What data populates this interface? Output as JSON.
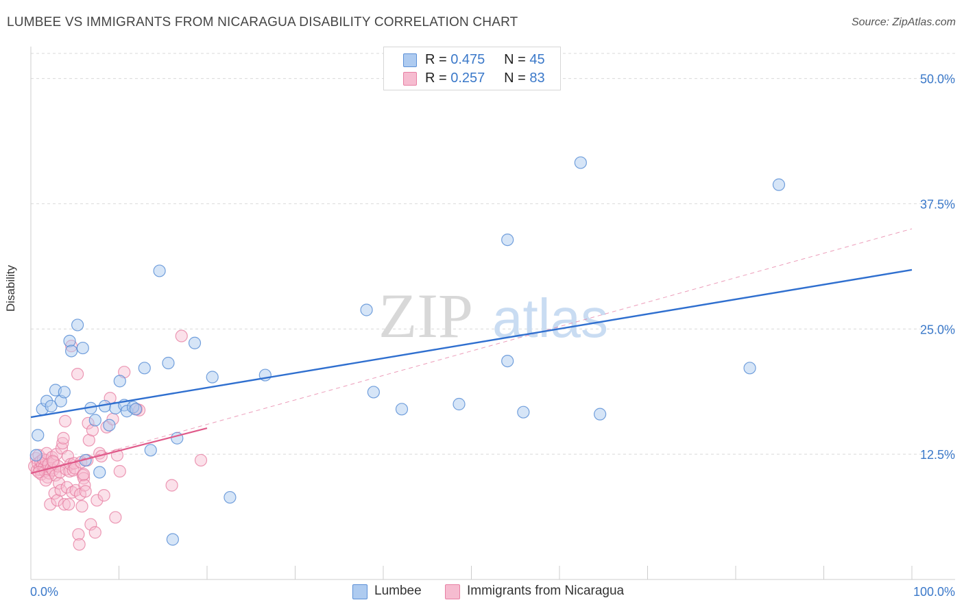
{
  "header": {
    "title": "LUMBEE VS IMMIGRANTS FROM NICARAGUA DISABILITY CORRELATION CHART",
    "source": "Source: ZipAtlas.com"
  },
  "legend_top": {
    "rows": [
      {
        "r_label": "R =",
        "r_value": "0.475",
        "n_label": "N =",
        "n_value": "45"
      },
      {
        "r_label": "R =",
        "r_value": "0.257",
        "n_label": "N =",
        "n_value": "83"
      }
    ]
  },
  "watermark": {
    "zip": "ZIP",
    "atlas": "atlas"
  },
  "colors": {
    "lumbee_fill": "#aecbf0",
    "lumbee_stroke": "#5b8fd6",
    "lumbee_line": "#2f6fcf",
    "nic_fill": "#f6bcd0",
    "nic_stroke": "#e77fa3",
    "nic_line": "#e05a8a",
    "tick_label": "#3a78c9",
    "grid": "#d9d9d9"
  },
  "chart_data": {
    "type": "scatter",
    "title": "LUMBEE VS IMMIGRANTS FROM NICARAGUA DISABILITY CORRELATION CHART",
    "xlabel": "",
    "ylabel": "Disability",
    "xlim": [
      0,
      100
    ],
    "ylim": [
      0,
      52.5
    ],
    "x_tick_labels": [
      "0.0%",
      "100.0%"
    ],
    "y_ticks": [
      12.5,
      25.0,
      37.5,
      50.0
    ],
    "y_tick_labels": [
      "12.5%",
      "25.0%",
      "37.5%",
      "50.0%"
    ],
    "grid": "horizontal dashed",
    "series": [
      {
        "name": "Lumbee",
        "r": 0.475,
        "n": 45,
        "trend": {
          "x": [
            0,
            100
          ],
          "y": [
            16.2,
            30.9
          ],
          "style": "solid"
        },
        "points": [
          [
            0.8,
            14.4
          ],
          [
            1.3,
            17.0
          ],
          [
            1.8,
            17.8
          ],
          [
            2.3,
            17.3
          ],
          [
            2.8,
            18.9
          ],
          [
            3.4,
            17.8
          ],
          [
            3.8,
            18.7
          ],
          [
            4.4,
            23.8
          ],
          [
            4.6,
            22.8
          ],
          [
            5.3,
            25.4
          ],
          [
            5.9,
            23.1
          ],
          [
            6.2,
            11.9
          ],
          [
            6.8,
            17.1
          ],
          [
            7.3,
            15.9
          ],
          [
            7.8,
            10.7
          ],
          [
            8.4,
            17.3
          ],
          [
            8.9,
            15.4
          ],
          [
            9.6,
            17.1
          ],
          [
            10.1,
            19.8
          ],
          [
            10.6,
            17.4
          ],
          [
            10.9,
            16.8
          ],
          [
            11.6,
            17.2
          ],
          [
            11.9,
            17.0
          ],
          [
            12.9,
            21.1
          ],
          [
            13.6,
            12.9
          ],
          [
            14.6,
            30.8
          ],
          [
            15.6,
            21.6
          ],
          [
            16.1,
            4.0
          ],
          [
            16.6,
            14.1
          ],
          [
            18.6,
            23.6
          ],
          [
            20.6,
            20.2
          ],
          [
            22.6,
            8.2
          ],
          [
            26.6,
            20.4
          ],
          [
            38.1,
            26.9
          ],
          [
            38.9,
            18.7
          ],
          [
            42.1,
            17.0
          ],
          [
            48.6,
            17.5
          ],
          [
            54.1,
            33.9
          ],
          [
            54.1,
            21.8
          ],
          [
            55.9,
            16.7
          ],
          [
            62.4,
            41.6
          ],
          [
            64.6,
            16.5
          ],
          [
            81.6,
            21.1
          ],
          [
            84.9,
            39.4
          ],
          [
            0.6,
            12.4
          ]
        ]
      },
      {
        "name": "Immigrants from Nicaragua",
        "r": 0.257,
        "n": 83,
        "trend": {
          "x": [
            0,
            20
          ],
          "y": [
            10.6,
            15.1
          ],
          "style": "solid"
        },
        "trend_extended": {
          "x": [
            0,
            100
          ],
          "y": [
            10.6,
            35.0
          ],
          "style": "dashed"
        },
        "points": [
          [
            0.4,
            11.3
          ],
          [
            0.6,
            12.1
          ],
          [
            0.7,
            10.9
          ],
          [
            0.8,
            11.6
          ],
          [
            0.9,
            12.4
          ],
          [
            1.0,
            11.0
          ],
          [
            1.1,
            11.8
          ],
          [
            1.2,
            10.5
          ],
          [
            1.3,
            11.4
          ],
          [
            1.4,
            12.0
          ],
          [
            1.5,
            11.2
          ],
          [
            1.6,
            10.8
          ],
          [
            1.7,
            11.9
          ],
          [
            1.8,
            12.6
          ],
          [
            1.9,
            10.2
          ],
          [
            2.0,
            11.5
          ],
          [
            2.1,
            10.6
          ],
          [
            2.2,
            7.5
          ],
          [
            2.3,
            11.1
          ],
          [
            2.4,
            12.2
          ],
          [
            2.5,
            10.9
          ],
          [
            2.6,
            11.7
          ],
          [
            2.7,
            8.6
          ],
          [
            2.8,
            10.4
          ],
          [
            2.9,
            12.5
          ],
          [
            3.0,
            7.9
          ],
          [
            3.1,
            11.3
          ],
          [
            3.2,
            9.6
          ],
          [
            3.3,
            10.7
          ],
          [
            3.4,
            8.9
          ],
          [
            3.5,
            13.1
          ],
          [
            3.6,
            13.6
          ],
          [
            3.7,
            14.1
          ],
          [
            3.8,
            7.5
          ],
          [
            3.9,
            15.8
          ],
          [
            4.0,
            11.0
          ],
          [
            4.1,
            9.2
          ],
          [
            4.2,
            12.3
          ],
          [
            4.3,
            7.5
          ],
          [
            4.4,
            10.8
          ],
          [
            4.5,
            11.5
          ],
          [
            4.6,
            23.3
          ],
          [
            4.7,
            8.7
          ],
          [
            4.8,
            10.9
          ],
          [
            4.9,
            11.6
          ],
          [
            5.0,
            11.1
          ],
          [
            5.1,
            8.9
          ],
          [
            5.3,
            20.5
          ],
          [
            5.4,
            4.5
          ],
          [
            5.5,
            3.5
          ],
          [
            5.6,
            8.5
          ],
          [
            5.7,
            11.7
          ],
          [
            5.8,
            7.3
          ],
          [
            5.9,
            10.4
          ],
          [
            6.0,
            10.1
          ],
          [
            6.1,
            9.4
          ],
          [
            6.2,
            8.8
          ],
          [
            6.4,
            11.9
          ],
          [
            6.5,
            15.6
          ],
          [
            6.6,
            13.9
          ],
          [
            6.8,
            5.5
          ],
          [
            7.0,
            14.9
          ],
          [
            7.3,
            4.7
          ],
          [
            7.5,
            7.9
          ],
          [
            7.8,
            12.6
          ],
          [
            8.0,
            12.3
          ],
          [
            8.3,
            8.4
          ],
          [
            8.6,
            15.2
          ],
          [
            9.0,
            18.1
          ],
          [
            9.3,
            16.0
          ],
          [
            9.6,
            6.2
          ],
          [
            10.1,
            10.8
          ],
          [
            10.6,
            20.7
          ],
          [
            12.0,
            17.0
          ],
          [
            12.3,
            16.9
          ],
          [
            16.0,
            9.4
          ],
          [
            17.1,
            24.3
          ],
          [
            19.3,
            11.9
          ],
          [
            9.8,
            12.4
          ],
          [
            6.0,
            10.5
          ],
          [
            2.5,
            11.8
          ],
          [
            1.7,
            9.9
          ],
          [
            0.9,
            10.7
          ]
        ]
      }
    ]
  },
  "bottom_legend": {
    "items": [
      "Lumbee",
      "Immigrants from Nicaragua"
    ]
  }
}
